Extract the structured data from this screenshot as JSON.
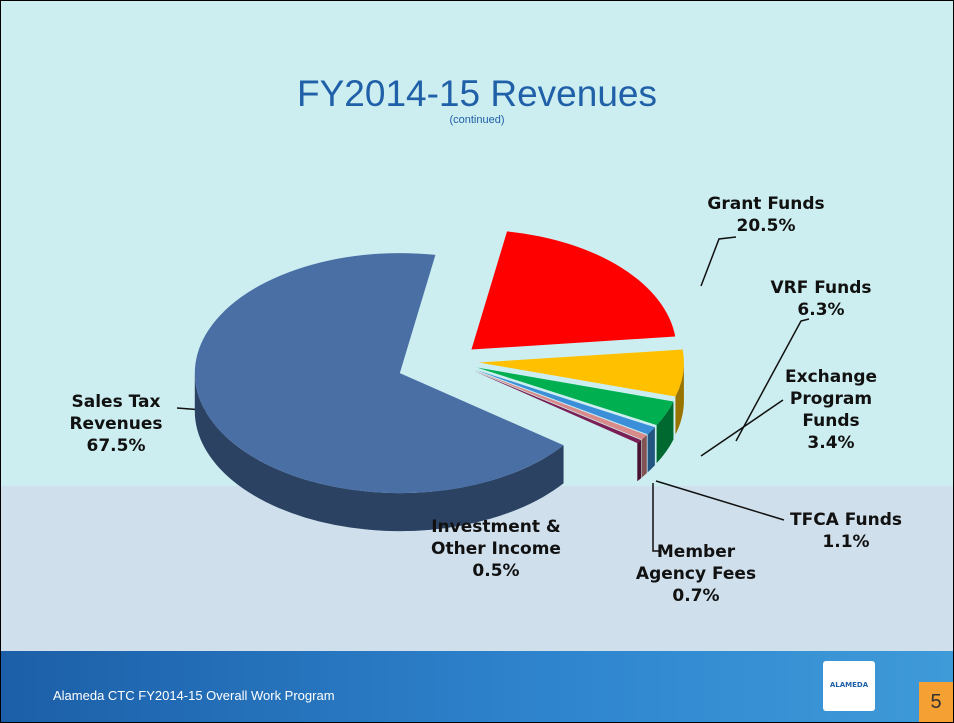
{
  "chart_data": {
    "type": "pie",
    "title": "FY2014-15 Revenues",
    "subtitle": "(continued)",
    "categories": [
      "Grant Funds",
      "VRF Funds",
      "Exchange Program Funds",
      "TFCA Funds",
      "Member Agency Fees",
      "Investment & Other Income",
      "Sales Tax Revenues"
    ],
    "values": [
      20.5,
      6.3,
      3.4,
      1.1,
      0.7,
      0.5,
      67.5
    ],
    "value_labels": [
      "20.5%",
      "6.3%",
      "3.4%",
      "1.1%",
      "0.7%",
      "0.5%",
      "67.5%"
    ],
    "colors": [
      "#ff0000",
      "#ffc000",
      "#00b050",
      "#3a8fd8",
      "#d98a8a",
      "#7a1f55",
      "#4a6fa5"
    ]
  },
  "footer": {
    "text": "Alameda CTC FY2014-15 Overall Work Program",
    "logo": "ALAMEDA",
    "page_number": "5"
  }
}
